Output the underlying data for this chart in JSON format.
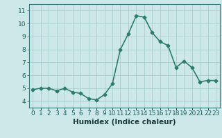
{
  "x": [
    0,
    1,
    2,
    3,
    4,
    5,
    6,
    7,
    8,
    9,
    10,
    11,
    12,
    13,
    14,
    15,
    16,
    17,
    18,
    19,
    20,
    21,
    22,
    23
  ],
  "y": [
    4.9,
    5.0,
    5.0,
    4.8,
    5.0,
    4.7,
    4.6,
    4.2,
    4.1,
    4.5,
    5.35,
    8.0,
    9.2,
    10.6,
    10.5,
    9.3,
    8.6,
    8.3,
    6.6,
    7.1,
    6.6,
    5.5,
    5.6,
    5.6
  ],
  "line_color": "#2d7d6d",
  "marker": "D",
  "marker_size": 2.5,
  "bg_color": "#cce8e8",
  "grid_color": "#aacece",
  "xlabel": "Humidex (Indice chaleur)",
  "xlim": [
    -0.5,
    23.5
  ],
  "ylim": [
    3.5,
    11.5
  ],
  "yticks": [
    4,
    5,
    6,
    7,
    8,
    9,
    10,
    11
  ],
  "xlabel_fontsize": 7.5,
  "tick_fontsize": 6.5,
  "linewidth": 1.2
}
